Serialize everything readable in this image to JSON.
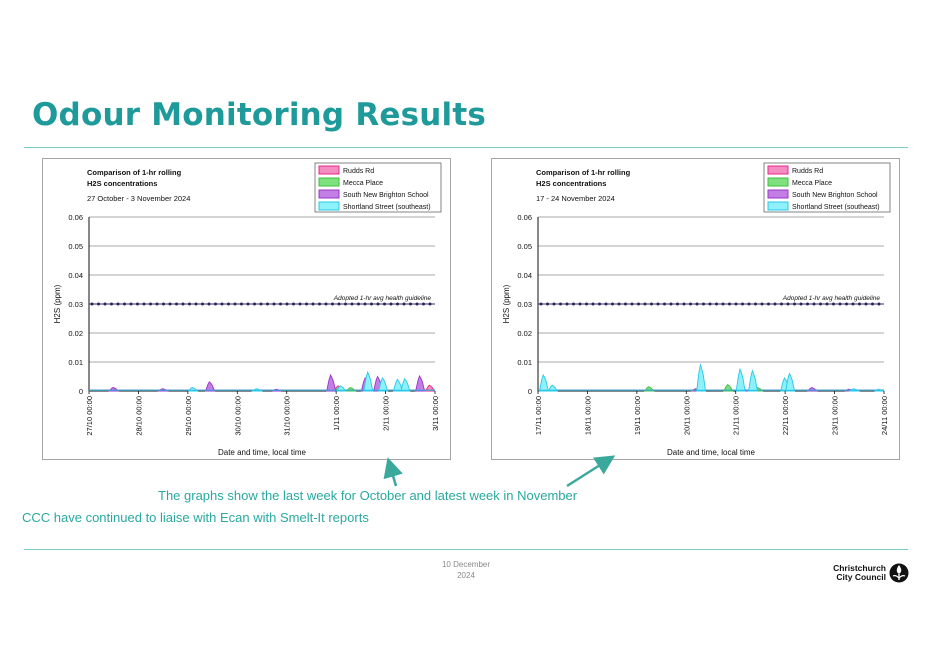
{
  "page": {
    "title": "Odour Monitoring Results",
    "caption_1": "The graphs show the last week for October and latest week in November",
    "caption_2": "CCC have continued to liaise with Ecan with Smelt-It reports",
    "footer_date_line1": "10 December",
    "footer_date_line2": "2024",
    "logo_line1": "Christchurch",
    "logo_line2": "City Council",
    "accent_color": "#1f9a9a",
    "caption_color": "#2aa8a0",
    "arrow_color": "#3aa99c"
  },
  "chart_data": [
    {
      "type": "area",
      "title_line1": "Comparison of 1-hr rolling",
      "title_line2": "H2S concentrations",
      "subtitle": "27 October - 3 November 2024",
      "xlabel": "Date and time, local time",
      "ylabel": "H2S (ppm)",
      "ylim": [
        0,
        0.06
      ],
      "yticks": [
        "0.06",
        "0.05",
        "0.04",
        "0.03",
        "0.02",
        "0.01",
        "0"
      ],
      "x_ticks": [
        "27/10 00:00",
        "28/10 00:00",
        "29/10 00:00",
        "30/10 00:00",
        "31/10 00:00",
        "1/11 00:00",
        "2/11 00:00",
        "3/11 00:00"
      ],
      "x_range_days": [
        0,
        7
      ],
      "legend_position": "top-right",
      "grid": true,
      "guideline": {
        "label": "Adopted 1-hr avg health guideline",
        "value": 0.03
      },
      "series": [
        {
          "name": "Rudds Rd",
          "color": "#e8298a",
          "fill": "#f48cc1",
          "peaks": [
            [
              0.5,
              0.0012
            ],
            [
              2.45,
              0.003
            ],
            [
              5.05,
              0.0018
            ],
            [
              5.85,
              0.004
            ],
            [
              6.9,
              0.002
            ]
          ]
        },
        {
          "name": "Mecca Place",
          "color": "#3fbf3f",
          "fill": "#7ee07e",
          "peaks": [
            [
              2.1,
              0.001
            ],
            [
              4.95,
              0.0015
            ],
            [
              5.3,
              0.0012
            ]
          ]
        },
        {
          "name": "South New Brighton School",
          "color": "#9a35c8",
          "fill": "#c27ee4",
          "peaks": [
            [
              0.5,
              0.0012
            ],
            [
              1.5,
              0.0008
            ],
            [
              2.45,
              0.0032
            ],
            [
              3.8,
              0.0006
            ],
            [
              4.9,
              0.0055
            ],
            [
              5.6,
              0.0045
            ],
            [
              5.85,
              0.005
            ],
            [
              6.7,
              0.0052
            ]
          ]
        },
        {
          "name": "Shortland Street (southeast)",
          "color": "#28c8e8",
          "fill": "#8ef0f8",
          "peaks": [
            [
              2.1,
              0.0012
            ],
            [
              3.4,
              0.0008
            ],
            [
              5.1,
              0.0018
            ],
            [
              5.65,
              0.0065
            ],
            [
              5.95,
              0.0045
            ],
            [
              6.25,
              0.004
            ],
            [
              6.4,
              0.0042
            ]
          ]
        }
      ]
    },
    {
      "type": "area",
      "title_line1": "Comparison of 1-hr rolling",
      "title_line2": "H2S concentrations",
      "subtitle": "17 - 24 November 2024",
      "xlabel": "Date and time, local time",
      "ylabel": "H2S (ppm)",
      "ylim": [
        0,
        0.06
      ],
      "yticks": [
        "0.06",
        "0.05",
        "0.04",
        "0.03",
        "0.02",
        "0.01",
        "0"
      ],
      "x_ticks": [
        "17/11 00:00",
        "18/11 00:00",
        "19/11 00:00",
        "20/11 00:00",
        "21/11 00:00",
        "22/11 00:00",
        "23/11 00:00",
        "24/11 00:00"
      ],
      "x_range_days": [
        0,
        7
      ],
      "legend_position": "top-right",
      "grid": true,
      "guideline": {
        "label": "Adopted 1-hr avg health guideline",
        "value": 0.03
      },
      "series": [
        {
          "name": "Rudds Rd",
          "color": "#e8298a",
          "fill": "#f48cc1",
          "peaks": [
            [
              3.2,
              0.0008
            ],
            [
              4.15,
              0.0008
            ]
          ]
        },
        {
          "name": "Mecca Place",
          "color": "#3fbf3f",
          "fill": "#7ee07e",
          "peaks": [
            [
              2.25,
              0.0015
            ],
            [
              3.85,
              0.0022
            ],
            [
              4.45,
              0.0012
            ]
          ]
        },
        {
          "name": "South New Brighton School",
          "color": "#9a35c8",
          "fill": "#c27ee4",
          "peaks": [
            [
              3.25,
              0.001
            ],
            [
              4.15,
              0.0008
            ],
            [
              5.55,
              0.0012
            ],
            [
              6.3,
              0.0006
            ]
          ]
        },
        {
          "name": "Shortland Street (southeast)",
          "color": "#28c8e8",
          "fill": "#8ef0f8",
          "peaks": [
            [
              0.12,
              0.0055
            ],
            [
              0.3,
              0.002
            ],
            [
              3.3,
              0.009
            ],
            [
              4.1,
              0.0075
            ],
            [
              4.35,
              0.007
            ],
            [
              5.0,
              0.0045
            ],
            [
              5.1,
              0.006
            ],
            [
              6.4,
              0.0008
            ],
            [
              6.9,
              0.0006
            ]
          ]
        }
      ]
    }
  ]
}
